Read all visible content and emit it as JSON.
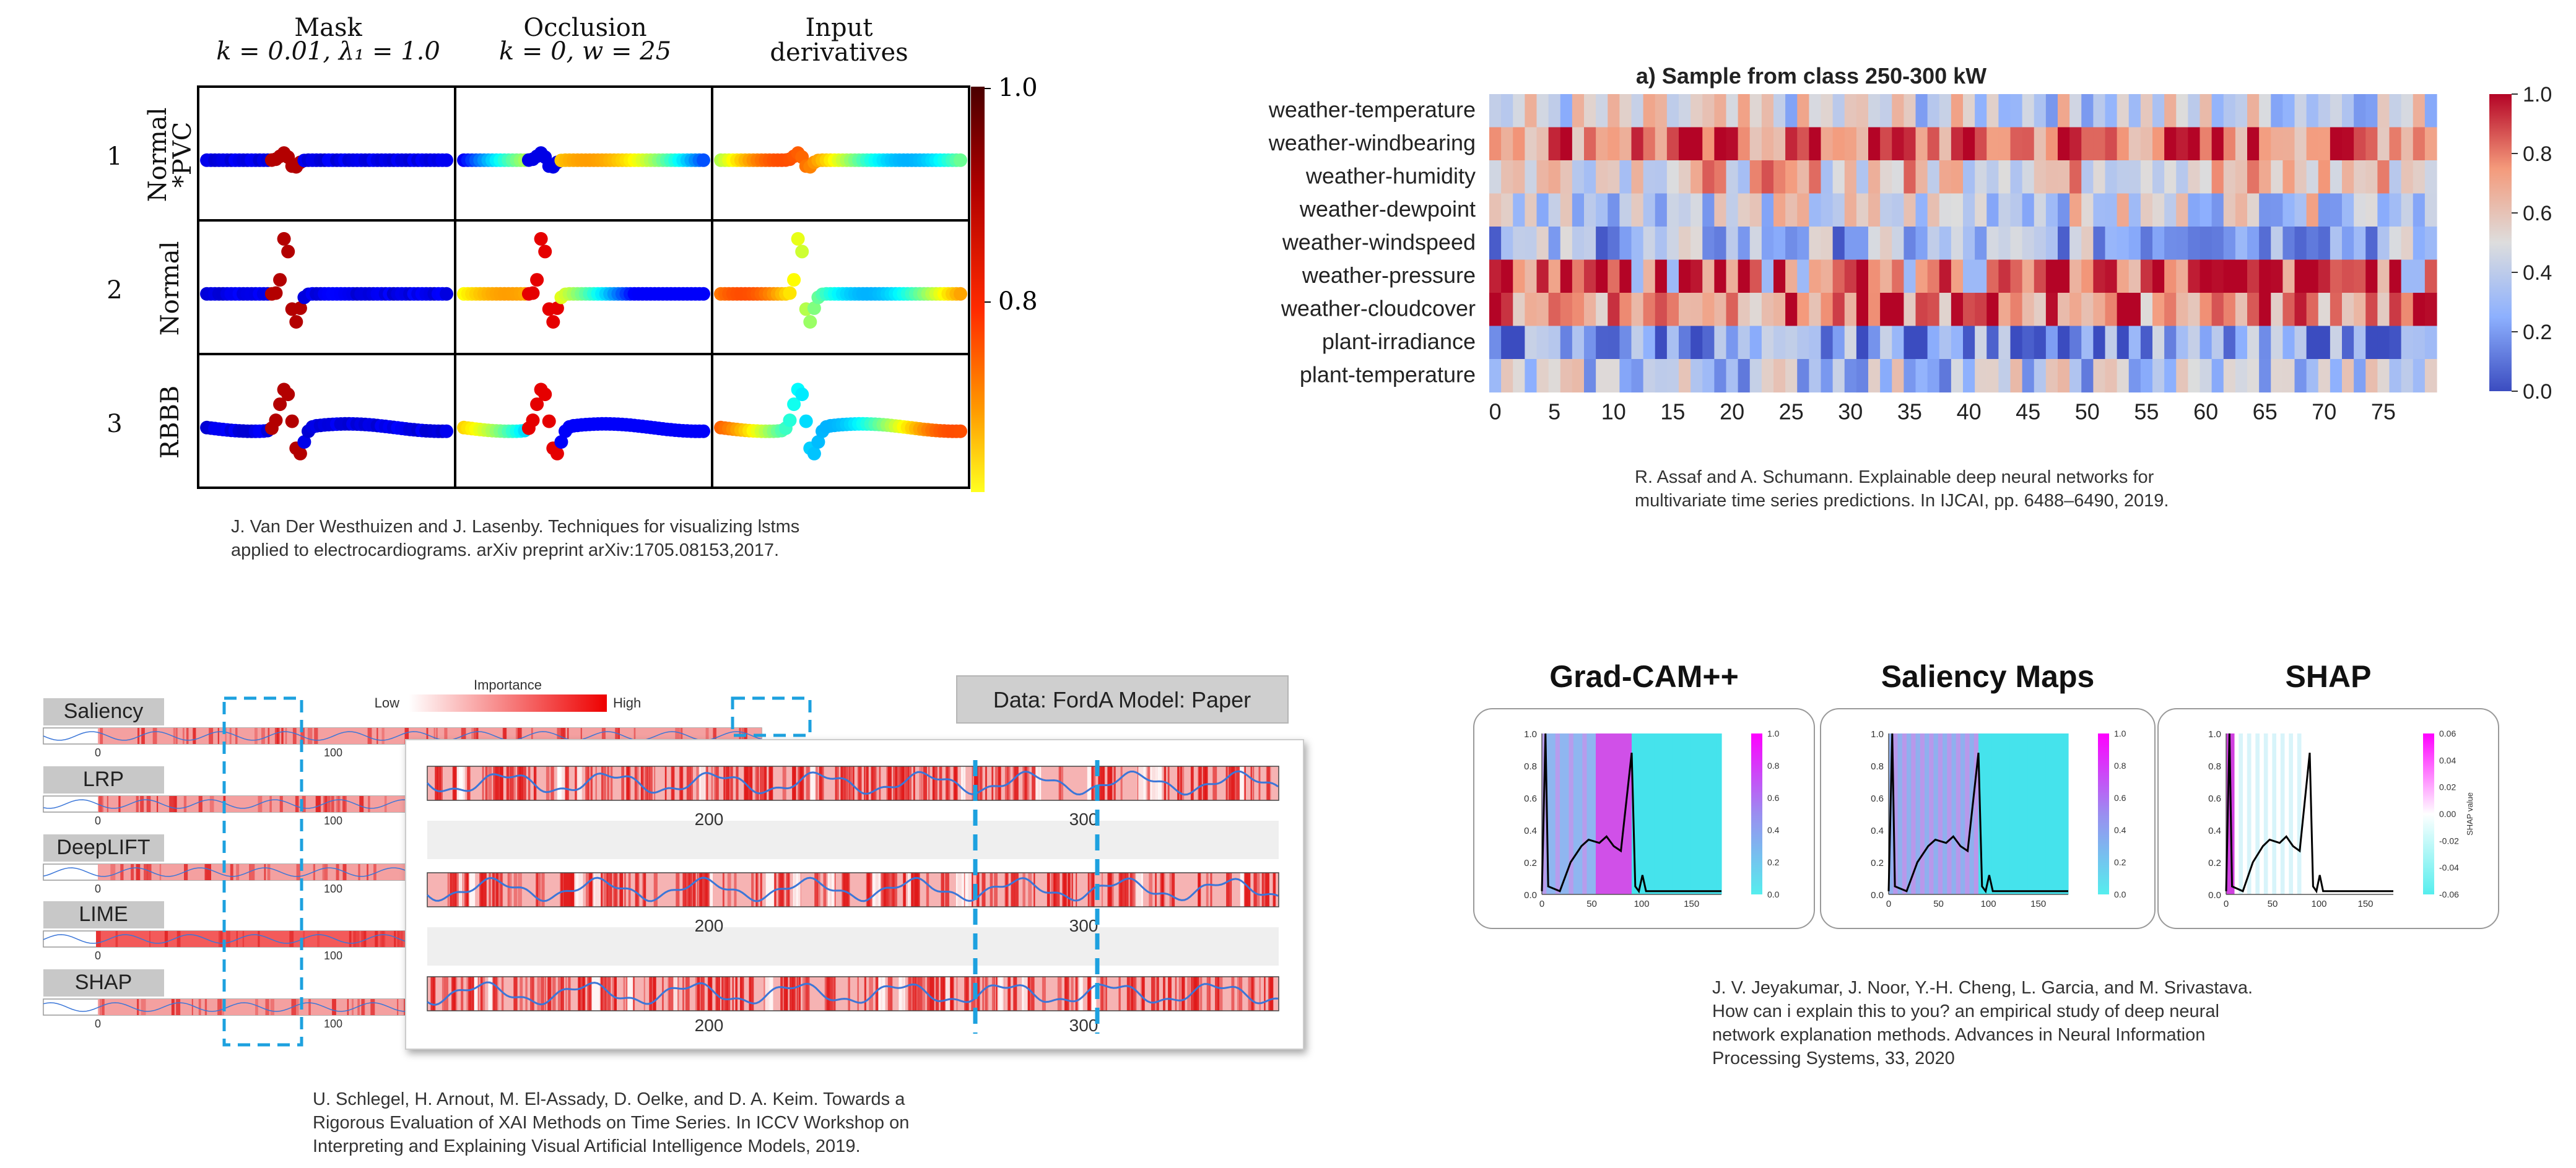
{
  "panelA": {
    "col_headers": [
      [
        "Mask",
        "k = 0.01, λ₁ = 1.0"
      ],
      [
        "Occlusion",
        "k = 0, w = 25"
      ],
      [
        "Input",
        "derivatives"
      ]
    ],
    "row_numbers": [
      "1",
      "2",
      "3"
    ],
    "row_labels": [
      [
        "Normal",
        "*PVC"
      ],
      [
        "Normal"
      ],
      [
        "RBBB"
      ]
    ],
    "colorbar_ticks": [
      "1.0",
      "0.8"
    ],
    "caption": [
      "J. Van Der Westhuizen and J. Lasenby.  Techniques for visualizing lstms",
      "applied to electrocardiograms. arXiv preprint arXiv:1705.08153,2017."
    ]
  },
  "panelB": {
    "chart_data": {
      "type": "heatmap",
      "title": "a) Sample from class 250-300 kW",
      "rows": [
        "weather-temperature",
        "weather-windbearing",
        "weather-humidity",
        "weather-dewpoint",
        "weather-windspeed",
        "weather-pressure",
        "weather-cloudcover",
        "plant-irradiance",
        "plant-temperature"
      ],
      "xticks": [
        "0",
        "5",
        "10",
        "15",
        "20",
        "25",
        "30",
        "35",
        "40",
        "45",
        "50",
        "55",
        "60",
        "65",
        "70",
        "75"
      ],
      "x_range": [
        0,
        79
      ],
      "colorbar": {
        "min": 0.0,
        "max": 1.0,
        "ticks": [
          "1.0",
          "0.8",
          "0.6",
          "0.4",
          "0.2",
          "0.0"
        ]
      },
      "row_means": [
        0.45,
        0.82,
        0.6,
        0.45,
        0.3,
        0.88,
        0.78,
        0.2,
        0.38
      ]
    },
    "caption": [
      "R. Assaf and A. Schumann. Explainable deep neural networks for",
      "multivariate time series predictions. In IJCAI, pp. 6488–6490, 2019."
    ]
  },
  "panelC": {
    "methods": [
      "Saliency",
      "LRP",
      "DeepLIFT",
      "LIME",
      "SHAP"
    ],
    "legend": {
      "title": "Importance",
      "low": "Low",
      "high": "High"
    },
    "data_box": "Data:  FordA  Model: Paper",
    "small_ticks": [
      "0",
      "100"
    ],
    "tick_labels": [
      "200",
      "300"
    ],
    "caption": [
      "U. Schlegel, H. Arnout, M. El-Assady, D. Oelke, and D. A. Keim. Towards a",
      "Rigorous Evaluation of XAI Methods on Time Series. In ICCV Workshop on",
      "Interpreting and Explaining Visual Artificial Intelligence Models, 2019."
    ]
  },
  "panelD": {
    "titles": [
      "Grad-CAM++",
      "Saliency Maps",
      "SHAP"
    ],
    "yticks": [
      "0.0",
      "0.2",
      "0.4",
      "0.6",
      "0.8",
      "1.0"
    ],
    "xticks": [
      "0",
      "50",
      "100",
      "150"
    ],
    "cbar_ticks": [
      "0.0",
      "0.2",
      "0.4",
      "0.6",
      "0.8",
      "1.0"
    ],
    "shap_cbar_ticks": [
      "0.06",
      "0.04",
      "0.02",
      "0.00",
      "-0.02",
      "-0.04",
      "-0.06"
    ],
    "shap_cbar_label": "SHAP value",
    "caption": [
      "J. V. Jeyakumar, J. Noor, Y.-H. Cheng, L. Garcia, and M. Srivastava.",
      "How can i explain this to you? an empirical study of deep neural",
      "network explanation methods. Advances in Neural Information",
      "Processing Systems, 33, 2020"
    ]
  }
}
